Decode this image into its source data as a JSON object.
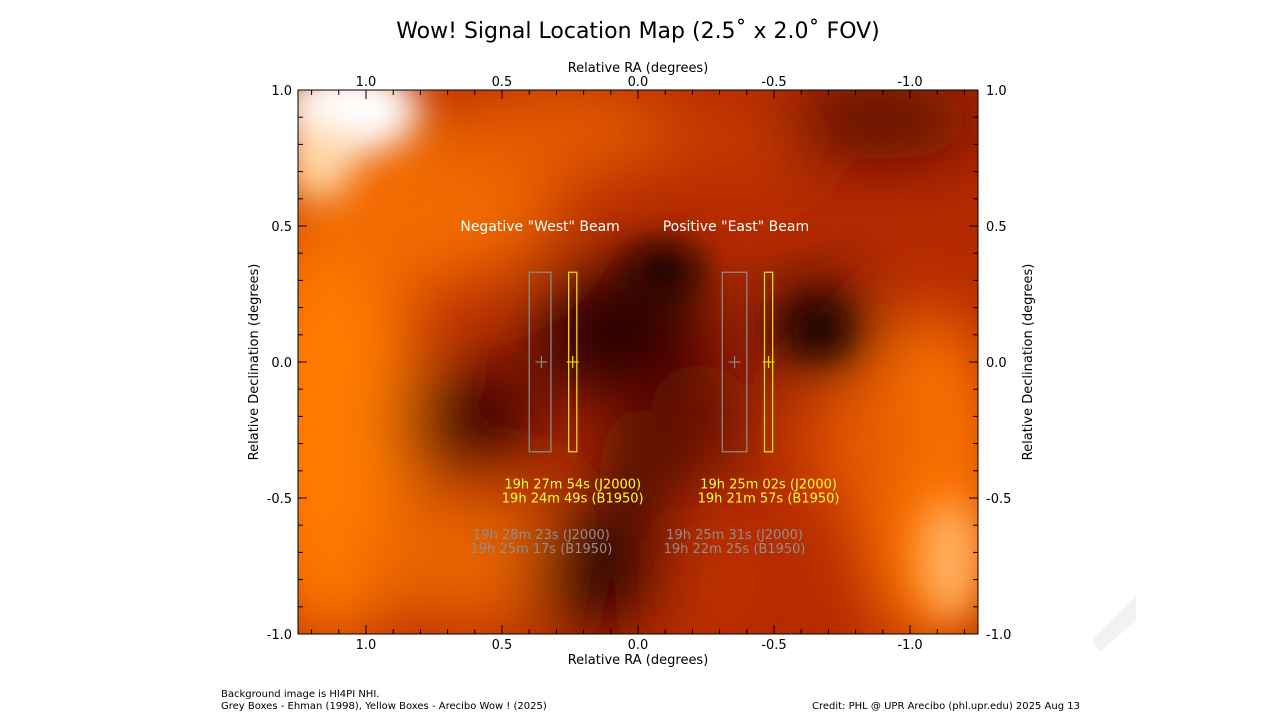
{
  "chart_data": {
    "type": "heatmap",
    "title": "Wow! Signal Location Map (2.5˚ x 2.0˚ FOV)",
    "xlabel_top": "Relative RA (degrees)",
    "xlabel_bottom": "Relative RA (degrees)",
    "ylabel_left": "Relative Declination (degrees)",
    "ylabel_right": "Relative Declination (degrees)",
    "xlim": [
      1.25,
      -1.25
    ],
    "ylim": [
      -1.0,
      1.0
    ],
    "x_ticks": [
      1.0,
      0.5,
      0.0,
      -0.5,
      -1.0
    ],
    "x_tick_labels": [
      "1.0",
      "0.5",
      "0.0",
      "-0.5",
      "-1.0"
    ],
    "y_ticks": [
      1.0,
      0.5,
      0.0,
      -0.5,
      -1.0
    ],
    "y_tick_labels": [
      "1.0",
      "0.5",
      "0.0",
      "-0.5",
      "-1.0"
    ],
    "beam_labels": [
      {
        "text": "Negative \"West\" Beam",
        "x": 0.36,
        "y": 0.5
      },
      {
        "text": "Positive \"East\" Beam",
        "x": -0.36,
        "y": 0.5
      }
    ],
    "grey_boxes": [
      {
        "x0": 0.4,
        "x1": 0.32,
        "y0": -0.33,
        "y1": 0.33,
        "cx": 0.355,
        "cy": 0.0
      },
      {
        "x0": -0.31,
        "x1": -0.4,
        "y0": -0.33,
        "y1": 0.33,
        "cx": -0.355,
        "cy": 0.0
      }
    ],
    "yellow_boxes": [
      {
        "x0": 0.255,
        "x1": 0.225,
        "y0": -0.33,
        "y1": 0.33,
        "cx": 0.24,
        "cy": 0.0
      },
      {
        "x0": -0.465,
        "x1": -0.495,
        "y0": -0.33,
        "y1": 0.33,
        "cx": -0.48,
        "cy": 0.0
      }
    ],
    "yellow_coords": [
      {
        "x": 0.24,
        "y": -0.447,
        "lines": [
          "19h 27m 54s (J2000)",
          "19h 24m 49s (B1950)"
        ]
      },
      {
        "x": -0.48,
        "y": -0.447,
        "lines": [
          "19h 25m 02s (J2000)",
          "19h 21m 57s (B1950)"
        ]
      }
    ],
    "grey_coords": [
      {
        "x": 0.355,
        "y": -0.633,
        "lines": [
          "19h 28m 23s (J2000)",
          "19h 25m 17s (B1950)"
        ]
      },
      {
        "x": -0.355,
        "y": -0.633,
        "lines": [
          "19h 25m 31s (J2000)",
          "19h 22m 25s (B1950)"
        ]
      }
    ],
    "colors": {
      "grey_box": "#8a8a8a",
      "yellow_box": "#e8e000",
      "yellow_text": "#ffff33",
      "grey_text": "#8f8f8f",
      "heat_dark": "#1a0000",
      "heat_mid": "#b22000",
      "heat_orange": "#ff8000",
      "heat_light": "#ffffff"
    }
  },
  "footer": {
    "line1": "Background image is HI4PI NHI.",
    "line2": "Grey Boxes - Ehman (1998), Yellow Boxes - Arecibo Wow ! (2025)",
    "credit": "Credit: PHL @ UPR Arecibo (phl.upr.edu) 2025 Aug 13"
  }
}
